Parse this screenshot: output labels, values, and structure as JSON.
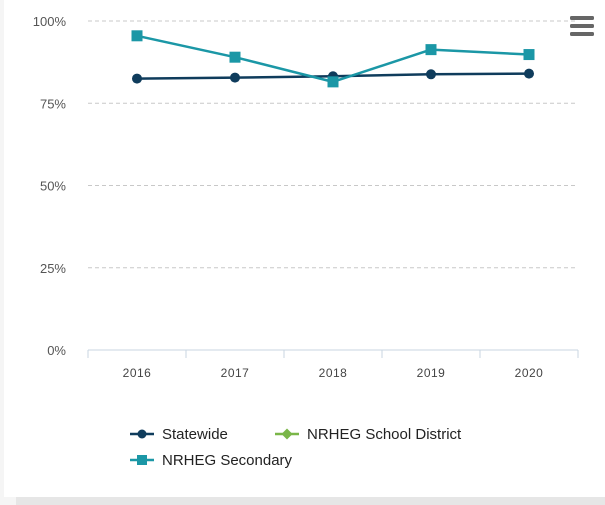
{
  "menu_icon": "hamburger-menu-icon",
  "colors": {
    "background": "#ffffff",
    "grid": "#c8c8c8",
    "axis": "#c8d6e2",
    "menu": "#666666",
    "statewide": "#0f3c5c",
    "district": "#7ab648",
    "secondary": "#1b97a6"
  },
  "chart_data": {
    "type": "line",
    "categories": [
      "2016",
      "2017",
      "2018",
      "2019",
      "2020"
    ],
    "y_ticks": [
      "100%",
      "75%",
      "50%",
      "25%",
      "0%"
    ],
    "ylim": [
      0,
      100
    ],
    "grid": true,
    "legend_position": "bottom",
    "series": [
      {
        "name": "Statewide",
        "marker": "circle",
        "color": "#0f3c5c",
        "values": [
          82.5,
          82.8,
          83.2,
          83.8,
          84.0
        ]
      },
      {
        "name": "NRHEG School District",
        "marker": "diamond",
        "color": "#7ab648",
        "values": [
          null,
          null,
          null,
          null,
          null
        ]
      },
      {
        "name": "NRHEG Secondary",
        "marker": "square",
        "color": "#1b97a6",
        "values": [
          95.5,
          89.0,
          81.5,
          91.3,
          89.8
        ]
      }
    ]
  }
}
